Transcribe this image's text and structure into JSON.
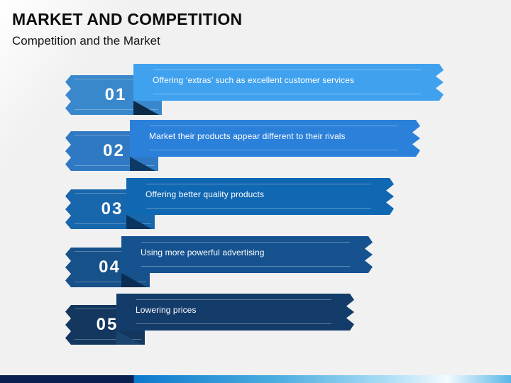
{
  "slide": {
    "title": "MARKET AND COMPETITION",
    "subtitle": "Competition and the Market",
    "background": "#F1F1F2",
    "background_highlight": "#FFFFFF"
  },
  "rows": [
    {
      "number": "01",
      "text": "Offering ‘extras’ such as excellent customer services",
      "ribbon_color": "#40A2EE",
      "banner_color": "#3A88CC",
      "fold_color": "#0B2B48"
    },
    {
      "number": "02",
      "text": "Market their products appear different to their rivals",
      "ribbon_color": "#2B80DA",
      "banner_color": "#2F79C3",
      "fold_color": "#0D3A64"
    },
    {
      "number": "03",
      "text": "Offering better quality products",
      "ribbon_color": "#1067B2",
      "banner_color": "#1866AB",
      "fold_color": "#0A3560"
    },
    {
      "number": "04",
      "text": "Using more powerful advertising",
      "ribbon_color": "#16528F",
      "banner_color": "#17518A",
      "fold_color": "#0C2D52"
    },
    {
      "number": "05",
      "text": "Lowering prices",
      "ribbon_color": "#143C6A",
      "banner_color": "#13375F",
      "fold_color": "#1B4571"
    }
  ],
  "footer": {
    "navy": "#0A2150",
    "blue": "#0B79CC",
    "mid": "#4FAFE0",
    "light": "#A8DCF5",
    "white": "#F2FAFE",
    "right": "#58B7E5"
  }
}
